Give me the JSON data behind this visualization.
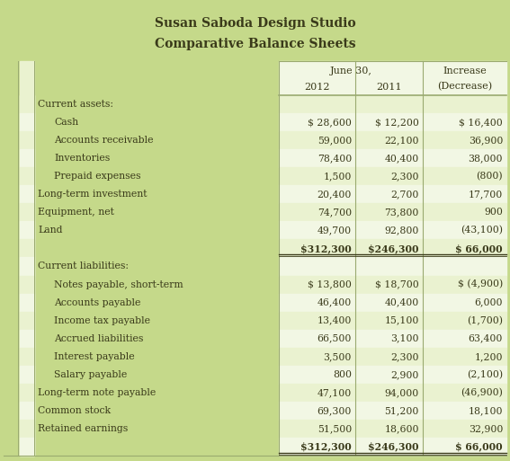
{
  "title_line1": "Susan Saboda Design Studio",
  "title_line2": "Comparative Balance Sheets",
  "rows": [
    {
      "label": "Current assets:",
      "indent": 0,
      "v2012": "",
      "v2011": "",
      "vchg": "",
      "is_section": true,
      "is_total": false
    },
    {
      "label": "Cash",
      "indent": 1,
      "v2012": "$ 28,600",
      "v2011": "$ 12,200",
      "vchg": "$ 16,400",
      "is_section": false,
      "is_total": false
    },
    {
      "label": "Accounts receivable",
      "indent": 1,
      "v2012": "59,000",
      "v2011": "22,100",
      "vchg": "36,900",
      "is_section": false,
      "is_total": false
    },
    {
      "label": "Inventories",
      "indent": 1,
      "v2012": "78,400",
      "v2011": "40,400",
      "vchg": "38,000",
      "is_section": false,
      "is_total": false
    },
    {
      "label": "Prepaid expenses",
      "indent": 1,
      "v2012": "1,500",
      "v2011": "2,300",
      "vchg": "(800)",
      "is_section": false,
      "is_total": false
    },
    {
      "label": "Long-term investment",
      "indent": 0,
      "v2012": "20,400",
      "v2011": "2,700",
      "vchg": "17,700",
      "is_section": false,
      "is_total": false
    },
    {
      "label": "Equipment, net",
      "indent": 0,
      "v2012": "74,700",
      "v2011": "73,800",
      "vchg": "900",
      "is_section": false,
      "is_total": false
    },
    {
      "label": "Land",
      "indent": 0,
      "v2012": "49,700",
      "v2011": "92,800",
      "vchg": "(43,100)",
      "is_section": false,
      "is_total": false
    },
    {
      "label": "",
      "indent": 0,
      "v2012": "$312,300",
      "v2011": "$246,300",
      "vchg": "$ 66,000",
      "is_section": false,
      "is_total": true
    },
    {
      "label": "Current liabilities:",
      "indent": 0,
      "v2012": "",
      "v2011": "",
      "vchg": "",
      "is_section": true,
      "is_total": false
    },
    {
      "label": "Notes payable, short-term",
      "indent": 1,
      "v2012": "$ 13,800",
      "v2011": "$ 18,700",
      "vchg": "$ (4,900)",
      "is_section": false,
      "is_total": false
    },
    {
      "label": "Accounts payable",
      "indent": 1,
      "v2012": "46,400",
      "v2011": "40,400",
      "vchg": "6,000",
      "is_section": false,
      "is_total": false
    },
    {
      "label": "Income tax payable",
      "indent": 1,
      "v2012": "13,400",
      "v2011": "15,100",
      "vchg": "(1,700)",
      "is_section": false,
      "is_total": false
    },
    {
      "label": "Accrued liabilities",
      "indent": 1,
      "v2012": "66,500",
      "v2011": "3,100",
      "vchg": "63,400",
      "is_section": false,
      "is_total": false
    },
    {
      "label": "Interest payable",
      "indent": 1,
      "v2012": "3,500",
      "v2011": "2,300",
      "vchg": "1,200",
      "is_section": false,
      "is_total": false
    },
    {
      "label": "Salary payable",
      "indent": 1,
      "v2012": "800",
      "v2011": "2,900",
      "vchg": "(2,100)",
      "is_section": false,
      "is_total": false
    },
    {
      "label": "Long-term note payable",
      "indent": 0,
      "v2012": "47,100",
      "v2011": "94,000",
      "vchg": "(46,900)",
      "is_section": false,
      "is_total": false
    },
    {
      "label": "Common stock",
      "indent": 0,
      "v2012": "69,300",
      "v2011": "51,200",
      "vchg": "18,100",
      "is_section": false,
      "is_total": false
    },
    {
      "label": "Retained earnings",
      "indent": 0,
      "v2012": "51,500",
      "v2011": "18,600",
      "vchg": "32,900",
      "is_section": false,
      "is_total": false
    },
    {
      "label": "",
      "indent": 0,
      "v2012": "$312,300",
      "v2011": "$246,300",
      "vchg": "$ 66,000",
      "is_section": false,
      "is_total": true
    }
  ],
  "bg_outer": "#c5d98a",
  "bg_header_row": "#dde9b8",
  "bg_row_even": "#eaf2d0",
  "bg_row_odd": "#f2f7e4",
  "text_color": "#3a3a1a",
  "border_color": "#9aaa70",
  "title_bg": "#c5d98a"
}
